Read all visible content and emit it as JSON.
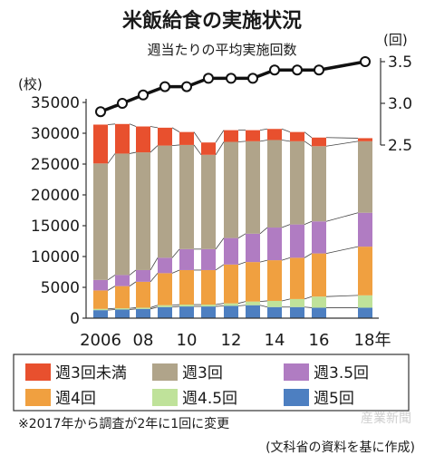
{
  "chart_data": {
    "type": "bar",
    "title": "米飯給食の実施状況",
    "left_unit": "(校)",
    "right_unit": "(回)",
    "line_label": "週当たりの平均実施回数",
    "categories": [
      "2006",
      "2007",
      "2008",
      "2009",
      "2010",
      "2011",
      "2012",
      "2013",
      "2014",
      "2015",
      "2016",
      "2018"
    ],
    "x_tick_labels": [
      "2006",
      "",
      "08",
      "",
      "10",
      "",
      "12",
      "",
      "14",
      "",
      "16",
      "18年"
    ],
    "series": [
      {
        "name": "週5回",
        "color": "#4d7fc1",
        "values": [
          1300,
          1400,
          1500,
          1800,
          1900,
          1900,
          2000,
          2100,
          1800,
          1800,
          1700,
          1700
        ]
      },
      {
        "name": "週4.5回",
        "color": "#bfe29a",
        "values": [
          200,
          200,
          200,
          300,
          300,
          300,
          400,
          600,
          1000,
          1300,
          1800,
          2000
        ]
      },
      {
        "name": "週4回",
        "color": "#f0a040",
        "values": [
          3000,
          3600,
          4200,
          5200,
          5600,
          5600,
          6300,
          6400,
          6600,
          6700,
          7000,
          7900
        ]
      },
      {
        "name": "週3.5回",
        "color": "#b07cc2",
        "values": [
          1700,
          1800,
          1900,
          2500,
          3400,
          3400,
          4300,
          4600,
          5300,
          5400,
          5200,
          5500
        ]
      },
      {
        "name": "週3回",
        "color": "#b0a48a",
        "values": [
          18900,
          19700,
          19100,
          18200,
          16900,
          15300,
          15600,
          15000,
          14200,
          13500,
          12200,
          11600
        ]
      },
      {
        "name": "週3回未満",
        "color": "#e8502e",
        "values": [
          6300,
          4800,
          4200,
          2900,
          2100,
          2000,
          1900,
          1800,
          1800,
          1500,
          1400,
          500
        ]
      }
    ],
    "line_series": {
      "name": "週当たりの平均実施回数",
      "values": [
        2.9,
        3.0,
        3.1,
        3.2,
        3.2,
        3.3,
        3.3,
        3.3,
        3.4,
        3.4,
        3.4,
        3.5
      ]
    },
    "ylim_left": [
      0,
      35000
    ],
    "left_ticks": [
      "0",
      "5000",
      "10000",
      "15000",
      "20000",
      "25000",
      "30000",
      "35000"
    ],
    "ylim_right": [
      2.5,
      3.5
    ],
    "right_ticks": [
      "2.5",
      "3.0",
      "3.5"
    ],
    "legend_position": "bottom",
    "legend": [
      "週3回未満",
      "週3回",
      "週3.5回",
      "週4回",
      "週4.5回",
      "週5回"
    ],
    "footnote": "※2017年から調査が2年に1回に変更",
    "source": "(文科省の資料を基に作成)",
    "watermark": "産業新聞"
  }
}
